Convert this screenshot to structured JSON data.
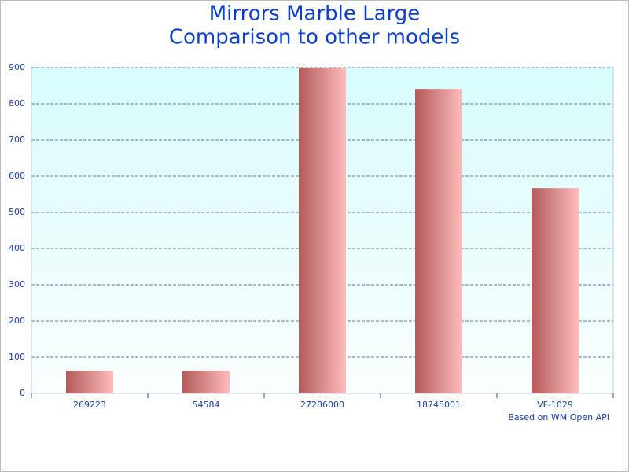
{
  "chart_data": {
    "type": "bar",
    "title": "Mirrors Marble Large",
    "subtitle": "Comparison to other models",
    "categories": [
      "269223",
      "54584",
      "27286000",
      "18745001",
      "VF-1029"
    ],
    "values": [
      63,
      63,
      900,
      841,
      567
    ],
    "color": [
      "#b35a5a",
      "#ffbcbc"
    ],
    "ylim": [
      0,
      900
    ],
    "yticks": [
      0,
      100,
      200,
      300,
      400,
      500,
      600,
      700,
      800,
      900
    ],
    "grid": true,
    "note": "Based on WM Open API"
  }
}
